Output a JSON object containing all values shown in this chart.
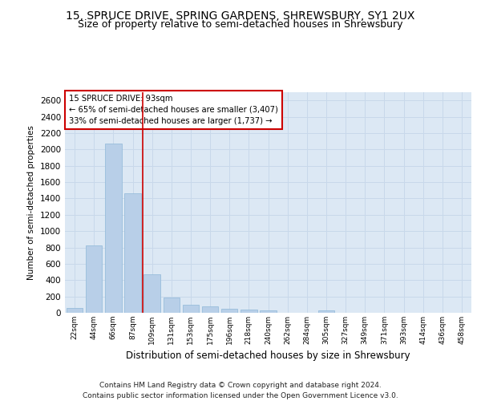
{
  "title": "15, SPRUCE DRIVE, SPRING GARDENS, SHREWSBURY, SY1 2UX",
  "subtitle": "Size of property relative to semi-detached houses in Shrewsbury",
  "xlabel": "Distribution of semi-detached houses by size in Shrewsbury",
  "ylabel": "Number of semi-detached properties",
  "categories": [
    "22sqm",
    "44sqm",
    "66sqm",
    "87sqm",
    "109sqm",
    "131sqm",
    "153sqm",
    "175sqm",
    "196sqm",
    "218sqm",
    "240sqm",
    "262sqm",
    "284sqm",
    "305sqm",
    "327sqm",
    "349sqm",
    "371sqm",
    "393sqm",
    "414sqm",
    "436sqm",
    "458sqm"
  ],
  "values": [
    60,
    820,
    2070,
    1460,
    470,
    190,
    100,
    75,
    50,
    40,
    30,
    0,
    0,
    25,
    0,
    0,
    0,
    0,
    0,
    0,
    0
  ],
  "bar_color": "#b8cfe8",
  "bar_edge_color": "#8fb8d8",
  "vline_color": "#cc0000",
  "annotation_text": "15 SPRUCE DRIVE: 93sqm\n← 65% of semi-detached houses are smaller (3,407)\n33% of semi-detached houses are larger (1,737) →",
  "annotation_box_color": "#ffffff",
  "annotation_box_edge": "#cc0000",
  "ylim": [
    0,
    2700
  ],
  "yticks": [
    0,
    200,
    400,
    600,
    800,
    1000,
    1200,
    1400,
    1600,
    1800,
    2000,
    2200,
    2400,
    2600
  ],
  "grid_color": "#c8d8ea",
  "background_color": "#dce8f4",
  "footer_text": "Contains HM Land Registry data © Crown copyright and database right 2024.\nContains public sector information licensed under the Open Government Licence v3.0.",
  "title_fontsize": 10,
  "subtitle_fontsize": 9,
  "footer_fontsize": 6.5
}
